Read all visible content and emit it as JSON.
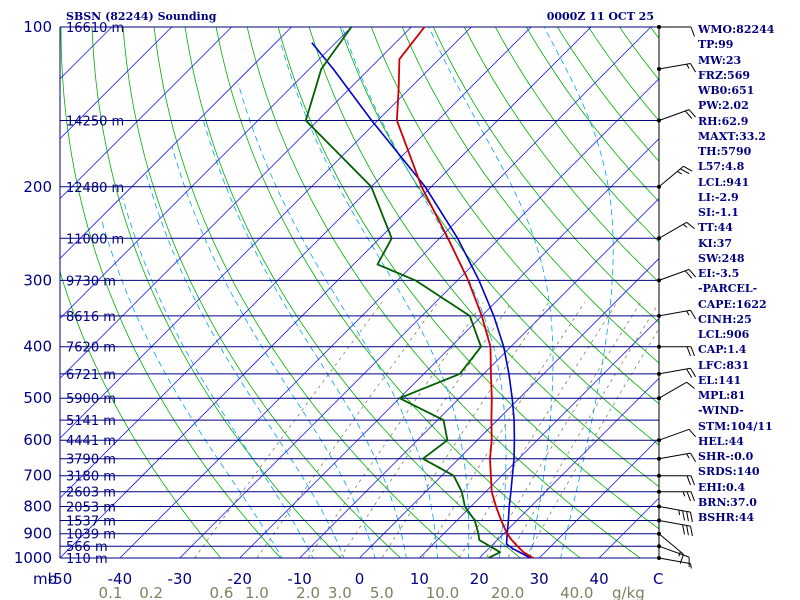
{
  "header": {
    "station": "SBSN (82244) Sounding",
    "datetime": "0000Z 11 OCT 25"
  },
  "colors": {
    "isobar": "#000080",
    "isotherm": "#1a1aff",
    "dry_adiabat": "#00b000",
    "moist_adiabat": "#00a0ff",
    "mixing_ratio": "#808060",
    "temperature": "#cc0000",
    "dewpoint": "#006000",
    "parcel": "#0000cc",
    "wind": "#000000",
    "text": "#000080"
  },
  "chart_data": {
    "type": "skew-t",
    "title": "SBSN (82244) Sounding",
    "time": "0000Z 11 OCT 25",
    "pressure_unit_label": "mb",
    "mixing_ratio_unit_label": "g/kg",
    "p_range": [
      1000,
      100
    ],
    "t_range_at_surface": [
      -50,
      50
    ],
    "pressure_levels": [
      {
        "p": 100,
        "label": "100"
      },
      {
        "p": 200,
        "label": "200"
      },
      {
        "p": 300,
        "label": "300"
      },
      {
        "p": 400,
        "label": "400"
      },
      {
        "p": 500,
        "label": "500"
      },
      {
        "p": 600,
        "label": "600"
      },
      {
        "p": 700,
        "label": "700"
      },
      {
        "p": 800,
        "label": "800"
      },
      {
        "p": 900,
        "label": "900"
      },
      {
        "p": 1000,
        "label": "1000"
      }
    ],
    "height_levels": [
      {
        "p": 100,
        "label": "16610 m"
      },
      {
        "p": 150,
        "label": "14250 m"
      },
      {
        "p": 200,
        "label": "12480 m"
      },
      {
        "p": 250,
        "label": "11000 m"
      },
      {
        "p": 300,
        "label": "9730 m"
      },
      {
        "p": 350,
        "label": "8616 m"
      },
      {
        "p": 400,
        "label": "7620 m"
      },
      {
        "p": 450,
        "label": "6721 m"
      },
      {
        "p": 500,
        "label": "5900 m"
      },
      {
        "p": 550,
        "label": "5141 m"
      },
      {
        "p": 600,
        "label": "4441 m"
      },
      {
        "p": 650,
        "label": "3790 m"
      },
      {
        "p": 700,
        "label": "3180 m"
      },
      {
        "p": 750,
        "label": "2603 m"
      },
      {
        "p": 800,
        "label": "2053 m"
      },
      {
        "p": 850,
        "label": "1537 m"
      },
      {
        "p": 900,
        "label": "1039 m"
      },
      {
        "p": 950,
        "label": "566 m"
      },
      {
        "p": 1000,
        "label": "110 m"
      }
    ],
    "temperature_ticks": [
      {
        "t": -50,
        "label": "-50"
      },
      {
        "t": -40,
        "label": "-40"
      },
      {
        "t": -30,
        "label": "-30"
      },
      {
        "t": -20,
        "label": "-20"
      },
      {
        "t": -10,
        "label": "-10"
      },
      {
        "t": 0,
        "label": "0"
      },
      {
        "t": 10,
        "label": "10"
      },
      {
        "t": 20,
        "label": "20"
      },
      {
        "t": 30,
        "label": "30"
      },
      {
        "t": 40,
        "label": "40"
      }
    ],
    "mixing_ratio_labels": [
      {
        "w": 0.1,
        "label": "0.1"
      },
      {
        "w": 0.2,
        "label": "0.2"
      },
      {
        "w": 0.6,
        "label": "0.6"
      },
      {
        "w": 1.0,
        "label": "1.0"
      },
      {
        "w": 2.0,
        "label": "2.0"
      },
      {
        "w": 3.0,
        "label": "3.0"
      },
      {
        "w": 5.0,
        "label": "5.0"
      },
      {
        "w": 10.0,
        "label": "10.0"
      },
      {
        "w": 20.0,
        "label": "20.0"
      },
      {
        "w": 40.0,
        "label": "40.0"
      }
    ],
    "dry_adiabats_theta_K": [
      250,
      260,
      270,
      280,
      290,
      300,
      310,
      320,
      330,
      340,
      350,
      360,
      370,
      380,
      390,
      400,
      410,
      420,
      430,
      440,
      450,
      460,
      470,
      480,
      490,
      500,
      510
    ],
    "moist_adiabats_start_C": [
      -10,
      -5,
      0,
      5,
      10,
      15,
      20,
      25,
      30,
      35
    ],
    "mixing_ratio_lines": [
      0.4,
      1.0,
      2.0,
      3.0,
      5.0,
      8.0,
      12.0,
      16.0,
      20.0,
      24.0
    ],
    "temperature_profile": [
      {
        "p": 1008,
        "t": 30.2
      },
      {
        "p": 1000,
        "t": 29.0
      },
      {
        "p": 975,
        "t": 26.4
      },
      {
        "p": 950,
        "t": 24.4
      },
      {
        "p": 925,
        "t": 22.4
      },
      {
        "p": 900,
        "t": 20.6
      },
      {
        "p": 850,
        "t": 17.4
      },
      {
        "p": 800,
        "t": 14.2
      },
      {
        "p": 750,
        "t": 11.0
      },
      {
        "p": 700,
        "t": 8.2
      },
      {
        "p": 650,
        "t": 5.2
      },
      {
        "p": 600,
        "t": 2.4
      },
      {
        "p": 550,
        "t": -1.0
      },
      {
        "p": 500,
        "t": -4.6
      },
      {
        "p": 450,
        "t": -8.8
      },
      {
        "p": 400,
        "t": -13.4
      },
      {
        "p": 350,
        "t": -20.0
      },
      {
        "p": 300,
        "t": -28.2
      },
      {
        "p": 250,
        "t": -38.6
      },
      {
        "p": 200,
        "t": -51.6
      },
      {
        "p": 150,
        "t": -66.8
      },
      {
        "p": 130,
        "t": -72.0
      },
      {
        "p": 115,
        "t": -76.6
      },
      {
        "p": 100,
        "t": -77.8
      }
    ],
    "dewpoint_profile": [
      {
        "p": 1000,
        "t": 21.5
      },
      {
        "p": 975,
        "t": 22.5
      },
      {
        "p": 950,
        "t": 19.8
      },
      {
        "p": 925,
        "t": 17.0
      },
      {
        "p": 900,
        "t": 15.8
      },
      {
        "p": 850,
        "t": 13.0
      },
      {
        "p": 800,
        "t": 9.0
      },
      {
        "p": 750,
        "t": 6.0
      },
      {
        "p": 700,
        "t": 2.0
      },
      {
        "p": 650,
        "t": -6.0
      },
      {
        "p": 600,
        "t": -5.0
      },
      {
        "p": 550,
        "t": -9.0
      },
      {
        "p": 500,
        "t": -20.0
      },
      {
        "p": 450,
        "t": -14.0
      },
      {
        "p": 400,
        "t": -15.0
      },
      {
        "p": 350,
        "t": -22.0
      },
      {
        "p": 300,
        "t": -37.0
      },
      {
        "p": 280,
        "t": -46.0
      },
      {
        "p": 250,
        "t": -48.0
      },
      {
        "p": 200,
        "t": -60.0
      },
      {
        "p": 150,
        "t": -82.0
      },
      {
        "p": 120,
        "t": -88.0
      },
      {
        "p": 100,
        "t": -90.0
      }
    ],
    "parcel_profile": [
      {
        "p": 1008,
        "t": 29.4
      },
      {
        "p": 960,
        "t": 24.0
      },
      {
        "p": 941,
        "t": 22.2
      },
      {
        "p": 900,
        "t": 20.6
      },
      {
        "p": 850,
        "t": 18.6
      },
      {
        "p": 800,
        "t": 16.4
      },
      {
        "p": 750,
        "t": 14.2
      },
      {
        "p": 700,
        "t": 11.8
      },
      {
        "p": 650,
        "t": 9.2
      },
      {
        "p": 600,
        "t": 6.2
      },
      {
        "p": 550,
        "t": 2.8
      },
      {
        "p": 500,
        "t": -1.2
      },
      {
        "p": 450,
        "t": -5.8
      },
      {
        "p": 400,
        "t": -11.2
      },
      {
        "p": 350,
        "t": -18.0
      },
      {
        "p": 300,
        "t": -26.4
      },
      {
        "p": 250,
        "t": -37.0
      },
      {
        "p": 200,
        "t": -51.0
      },
      {
        "p": 150,
        "t": -71.0
      },
      {
        "p": 120,
        "t": -86.0
      },
      {
        "p": 107,
        "t": -94.0
      }
    ],
    "wind_profile": [
      {
        "p": 1000,
        "dir": 100,
        "spd": 5
      },
      {
        "p": 950,
        "dir": 110,
        "spd": 10
      },
      {
        "p": 900,
        "dir": 130,
        "spd": 15
      },
      {
        "p": 850,
        "dir": 100,
        "spd": 30
      },
      {
        "p": 800,
        "dir": 100,
        "spd": 35
      },
      {
        "p": 750,
        "dir": 90,
        "spd": 25
      },
      {
        "p": 700,
        "dir": 90,
        "spd": 20
      },
      {
        "p": 650,
        "dir": 80,
        "spd": 15
      },
      {
        "p": 600,
        "dir": 70,
        "spd": 10
      },
      {
        "p": 500,
        "dir": 60,
        "spd": 10
      },
      {
        "p": 450,
        "dir": 80,
        "spd": 20
      },
      {
        "p": 400,
        "dir": 90,
        "spd": 20
      },
      {
        "p": 350,
        "dir": 80,
        "spd": 15
      },
      {
        "p": 300,
        "dir": 70,
        "spd": 20
      },
      {
        "p": 250,
        "dir": 60,
        "spd": 15
      },
      {
        "p": 200,
        "dir": 50,
        "spd": 25
      },
      {
        "p": 150,
        "dir": 70,
        "spd": 20
      },
      {
        "p": 120,
        "dir": 80,
        "spd": 15
      },
      {
        "p": 100,
        "dir": 90,
        "spd": 10
      }
    ]
  },
  "indices": [
    "WMO:82244",
    "TP:99",
    "MW:23",
    "FRZ:569",
    "WB0:651",
    "PW:2.02",
    "RH:62.9",
    "MAXT:33.2",
    "TH:5790",
    "L57:4.8",
    "LCL:941",
    "LI:-2.9",
    "SI:-1.1",
    "TT:44",
    "KI:37",
    "SW:248",
    "EI:-3.5",
    "-PARCEL-",
    "CAPE:1622",
    "CINH:25",
    "LCL:906",
    "CAP:1.4",
    "LFC:831",
    "EL:141",
    "MPL:81",
    "-WIND-",
    "STM:104/11",
    "HEL:44",
    "SHR-:0.0",
    "SRDS:140",
    "EHI:0.4",
    "BRN:37.0",
    "BSHR:44"
  ]
}
